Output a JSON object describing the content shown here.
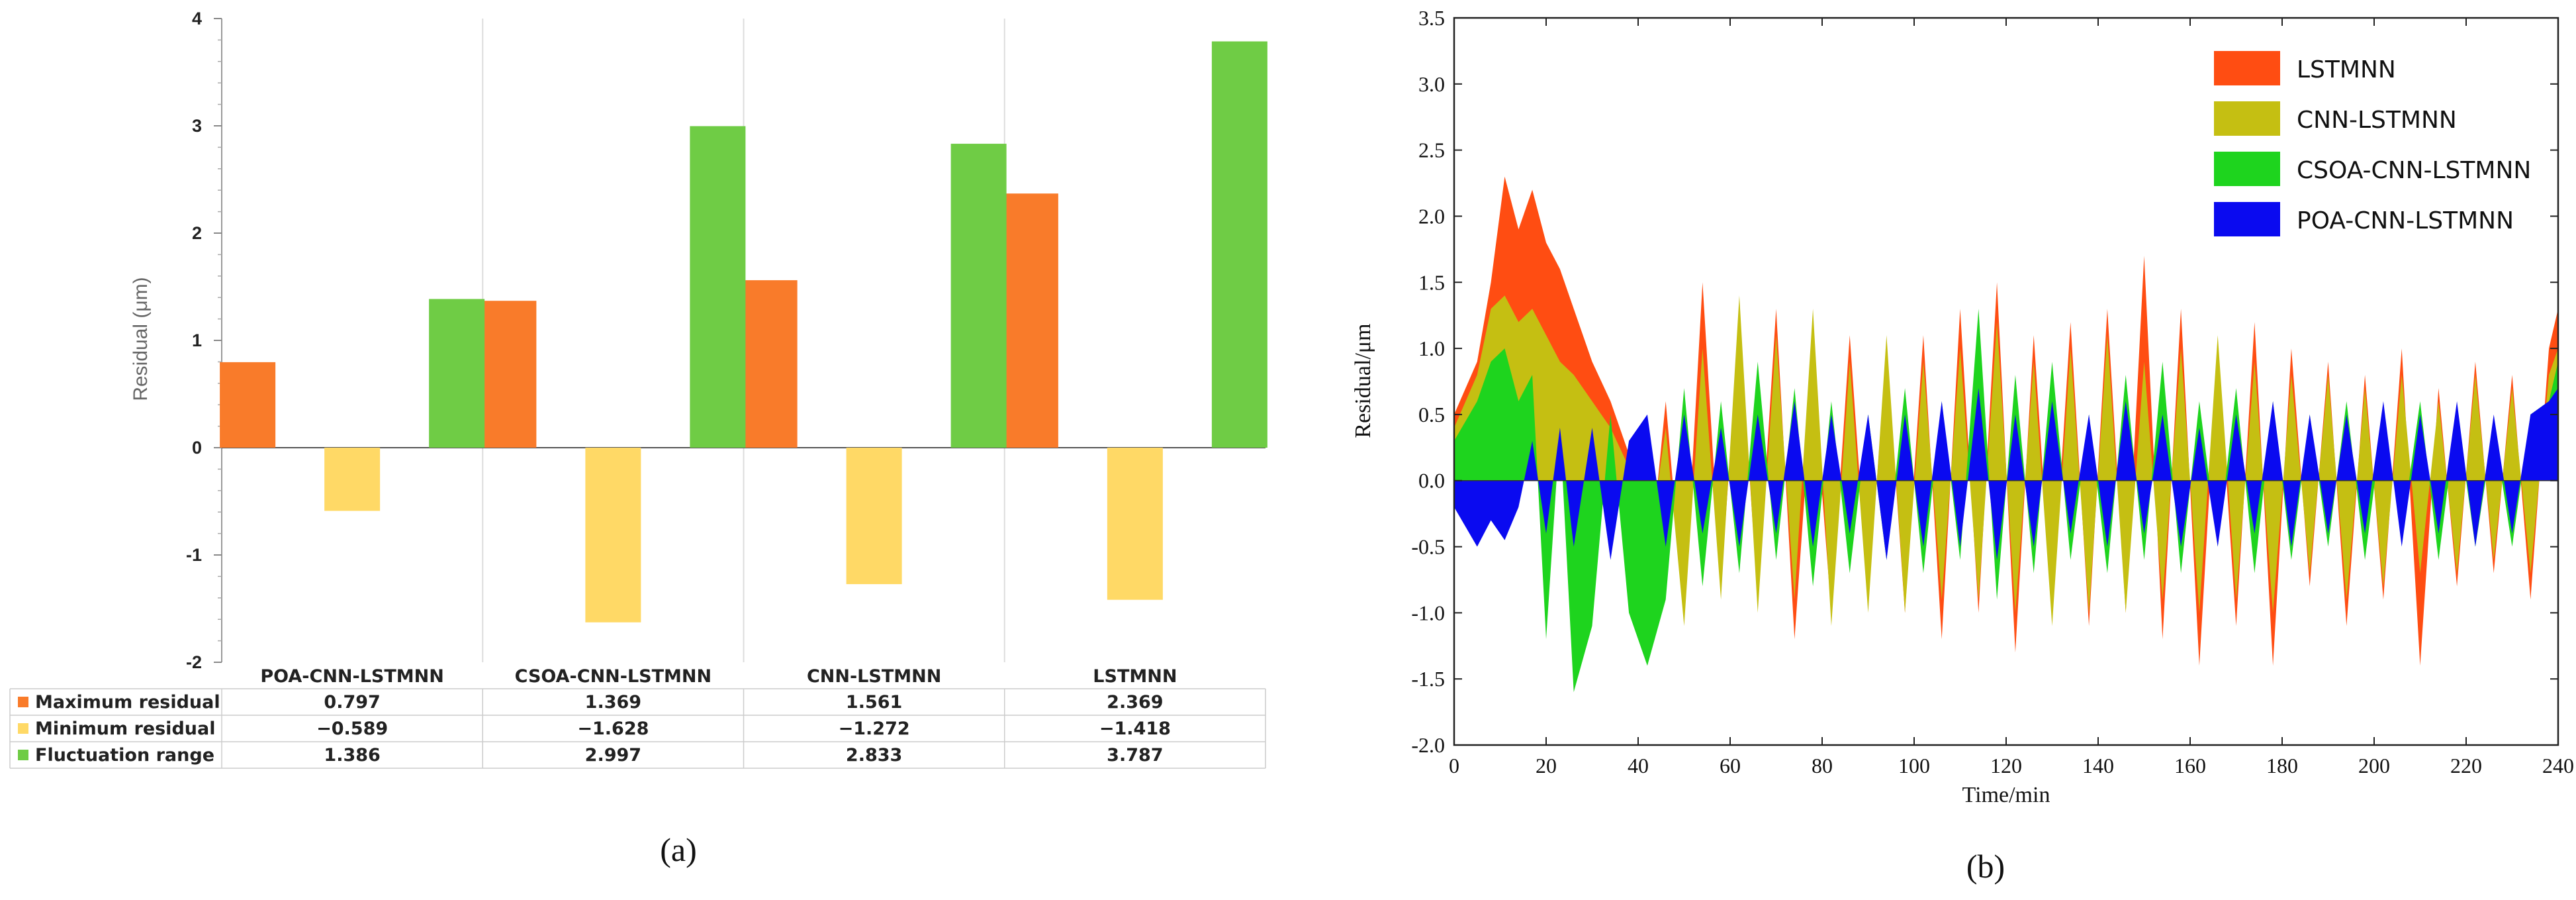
{
  "panels": {
    "a_label": "(a)",
    "b_label": "(b)"
  },
  "chart_data": [
    {
      "type": "bar",
      "ylabel": "Residual (μm)",
      "ylim": [
        -2,
        4
      ],
      "yticks": [
        "4",
        "3",
        "2",
        "1",
        "0",
        "-1",
        "-2"
      ],
      "categories": [
        "POA-CNN-LSTMNN",
        "CSOA-CNN-LSTMNN",
        "CNN-LSTMNN",
        "LSTMNN"
      ],
      "series": [
        {
          "name": "Maximum residual",
          "color": "#f97b2a",
          "values": [
            0.797,
            1.369,
            1.561,
            2.369
          ],
          "labels": [
            "0.797",
            "1.369",
            "1.561",
            "2.369"
          ]
        },
        {
          "name": "Minimum residual",
          "color": "#ffd966",
          "values": [
            -0.589,
            -1.628,
            -1.272,
            -1.418
          ],
          "labels": [
            "−0.589",
            "−1.628",
            "−1.272",
            "−1.418"
          ]
        },
        {
          "name": "Fluctuation range",
          "color": "#6fcc45",
          "values": [
            1.386,
            2.997,
            2.833,
            3.787
          ],
          "labels": [
            "1.386",
            "2.997",
            "2.833",
            "3.787"
          ]
        }
      ],
      "grid": true,
      "legend": "table-below"
    },
    {
      "type": "area",
      "xlabel": "Time/min",
      "ylabel": "Residual/μm",
      "xlim": [
        0,
        240
      ],
      "ylim": [
        -2.0,
        3.5
      ],
      "xticks": [
        "0",
        "20",
        "40",
        "60",
        "80",
        "100",
        "120",
        "140",
        "160",
        "180",
        "200",
        "220",
        "240"
      ],
      "yticks": [
        "3.5",
        "3.0",
        "2.5",
        "2.0",
        "1.5",
        "1.0",
        "0.5",
        "0.0",
        "-0.5",
        "-1.0",
        "-1.5",
        "-2.0"
      ],
      "legend": "top-right",
      "series": [
        {
          "name": "LSTMNN",
          "color": "#ff4d12",
          "x": [
            0,
            5,
            8,
            11,
            14,
            17,
            20,
            23,
            26,
            30,
            34,
            38,
            42,
            46,
            50,
            54,
            58,
            62,
            66,
            70,
            74,
            78,
            82,
            86,
            90,
            94,
            98,
            102,
            106,
            110,
            114,
            118,
            122,
            126,
            130,
            134,
            138,
            142,
            146,
            150,
            154,
            158,
            162,
            166,
            170,
            174,
            178,
            182,
            186,
            190,
            194,
            198,
            202,
            206,
            210,
            214,
            218,
            222,
            226,
            230,
            234,
            238,
            240
          ],
          "y": [
            0.5,
            0.9,
            1.5,
            2.3,
            1.9,
            2.2,
            1.8,
            1.6,
            1.3,
            0.9,
            0.6,
            0.2,
            -0.8,
            0.6,
            -1.0,
            1.5,
            -0.8,
            1.2,
            -0.9,
            1.3,
            -1.2,
            0.8,
            -1.0,
            1.1,
            -0.9,
            1.0,
            -1.0,
            1.1,
            -1.2,
            1.3,
            -1.0,
            1.5,
            -1.3,
            1.1,
            -1.0,
            1.2,
            -1.1,
            1.3,
            -1.0,
            1.7,
            -1.2,
            1.3,
            -1.4,
            1.0,
            -1.1,
            1.2,
            -1.4,
            1.0,
            -0.8,
            0.9,
            -1.1,
            0.8,
            -0.9,
            1.0,
            -1.4,
            0.7,
            -0.8,
            0.9,
            -0.7,
            0.8,
            -0.9,
            1.0,
            1.3
          ]
        },
        {
          "name": "CNN-LSTMNN",
          "color": "#c5bf12",
          "x": [
            0,
            5,
            8,
            11,
            14,
            17,
            20,
            23,
            26,
            30,
            34,
            38,
            42,
            46,
            50,
            54,
            58,
            62,
            66,
            70,
            74,
            78,
            82,
            86,
            90,
            94,
            98,
            102,
            106,
            110,
            114,
            118,
            122,
            126,
            130,
            134,
            138,
            142,
            146,
            150,
            154,
            158,
            162,
            166,
            170,
            174,
            178,
            182,
            186,
            190,
            194,
            198,
            202,
            206,
            210,
            214,
            218,
            222,
            226,
            230,
            234,
            238,
            240
          ],
          "y": [
            0.4,
            0.8,
            1.3,
            1.4,
            1.2,
            1.3,
            1.1,
            0.9,
            0.8,
            0.6,
            0.4,
            0.1,
            -0.6,
            0.4,
            -1.1,
            1.0,
            -0.9,
            1.4,
            -1.0,
            1.1,
            -0.9,
            1.3,
            -1.1,
            0.9,
            -1.0,
            1.1,
            -1.0,
            0.9,
            -0.9,
            1.0,
            -0.9,
            1.2,
            -1.0,
            0.9,
            -1.1,
            1.0,
            -1.0,
            1.1,
            -1.0,
            0.9,
            -0.9,
            1.0,
            -1.0,
            1.1,
            -0.9,
            0.9,
            -1.0,
            0.8,
            -0.7,
            0.8,
            -0.9,
            0.7,
            -0.8,
            0.8,
            -0.7,
            0.6,
            -0.7,
            0.8,
            -0.6,
            0.7,
            -0.7,
            0.8,
            1.0
          ]
        },
        {
          "name": "CSOA-CNN-LSTMNN",
          "color": "#1ed41e",
          "x": [
            0,
            5,
            8,
            11,
            14,
            17,
            20,
            23,
            26,
            30,
            34,
            38,
            42,
            46,
            50,
            54,
            58,
            62,
            66,
            70,
            74,
            78,
            82,
            86,
            90,
            94,
            98,
            102,
            106,
            110,
            114,
            118,
            122,
            126,
            130,
            134,
            138,
            142,
            146,
            150,
            154,
            158,
            162,
            166,
            170,
            174,
            178,
            182,
            186,
            190,
            194,
            198,
            202,
            206,
            210,
            214,
            218,
            222,
            226,
            230,
            234,
            238,
            240
          ],
          "y": [
            0.3,
            0.6,
            0.9,
            1.0,
            0.6,
            0.8,
            -1.2,
            0.4,
            -1.6,
            -1.1,
            0.5,
            -1.0,
            -1.4,
            -0.9,
            0.7,
            -0.8,
            0.6,
            -0.7,
            0.9,
            -0.6,
            0.7,
            -0.8,
            0.6,
            -0.7,
            0.5,
            -0.6,
            0.7,
            -0.7,
            0.6,
            -0.6,
            1.3,
            -0.9,
            0.8,
            -0.7,
            0.9,
            -0.6,
            0.5,
            -0.7,
            0.8,
            -0.6,
            0.9,
            -0.7,
            0.6,
            -0.5,
            0.7,
            -0.7,
            0.6,
            -0.6,
            0.5,
            -0.5,
            0.6,
            -0.6,
            0.5,
            -0.4,
            0.6,
            -0.6,
            0.5,
            -0.5,
            0.4,
            -0.5,
            0.5,
            0.6,
            0.9
          ]
        },
        {
          "name": "POA-CNN-LSTMNN",
          "color": "#0a0af0",
          "x": [
            0,
            5,
            8,
            11,
            14,
            17,
            20,
            23,
            26,
            30,
            34,
            38,
            42,
            46,
            50,
            54,
            58,
            62,
            66,
            70,
            74,
            78,
            82,
            86,
            90,
            94,
            98,
            102,
            106,
            110,
            114,
            118,
            122,
            126,
            130,
            134,
            138,
            142,
            146,
            150,
            154,
            158,
            162,
            166,
            170,
            174,
            178,
            182,
            186,
            190,
            194,
            198,
            202,
            206,
            210,
            214,
            218,
            222,
            226,
            230,
            234,
            238,
            240
          ],
          "y": [
            -0.2,
            -0.5,
            -0.3,
            -0.45,
            -0.2,
            0.3,
            -0.4,
            0.4,
            -0.5,
            0.4,
            -0.6,
            0.3,
            0.5,
            -0.5,
            0.5,
            -0.4,
            0.4,
            -0.5,
            0.5,
            -0.4,
            0.6,
            -0.5,
            0.5,
            -0.4,
            0.5,
            -0.6,
            0.5,
            -0.5,
            0.6,
            -0.5,
            0.7,
            -0.6,
            0.5,
            -0.5,
            0.6,
            -0.4,
            0.5,
            -0.5,
            0.6,
            -0.4,
            0.5,
            -0.5,
            0.4,
            -0.5,
            0.5,
            -0.4,
            0.6,
            -0.5,
            0.5,
            -0.4,
            0.5,
            -0.4,
            0.6,
            -0.5,
            0.5,
            -0.4,
            0.6,
            -0.5,
            0.5,
            -0.4,
            0.5,
            0.6,
            0.7
          ]
        }
      ]
    }
  ]
}
